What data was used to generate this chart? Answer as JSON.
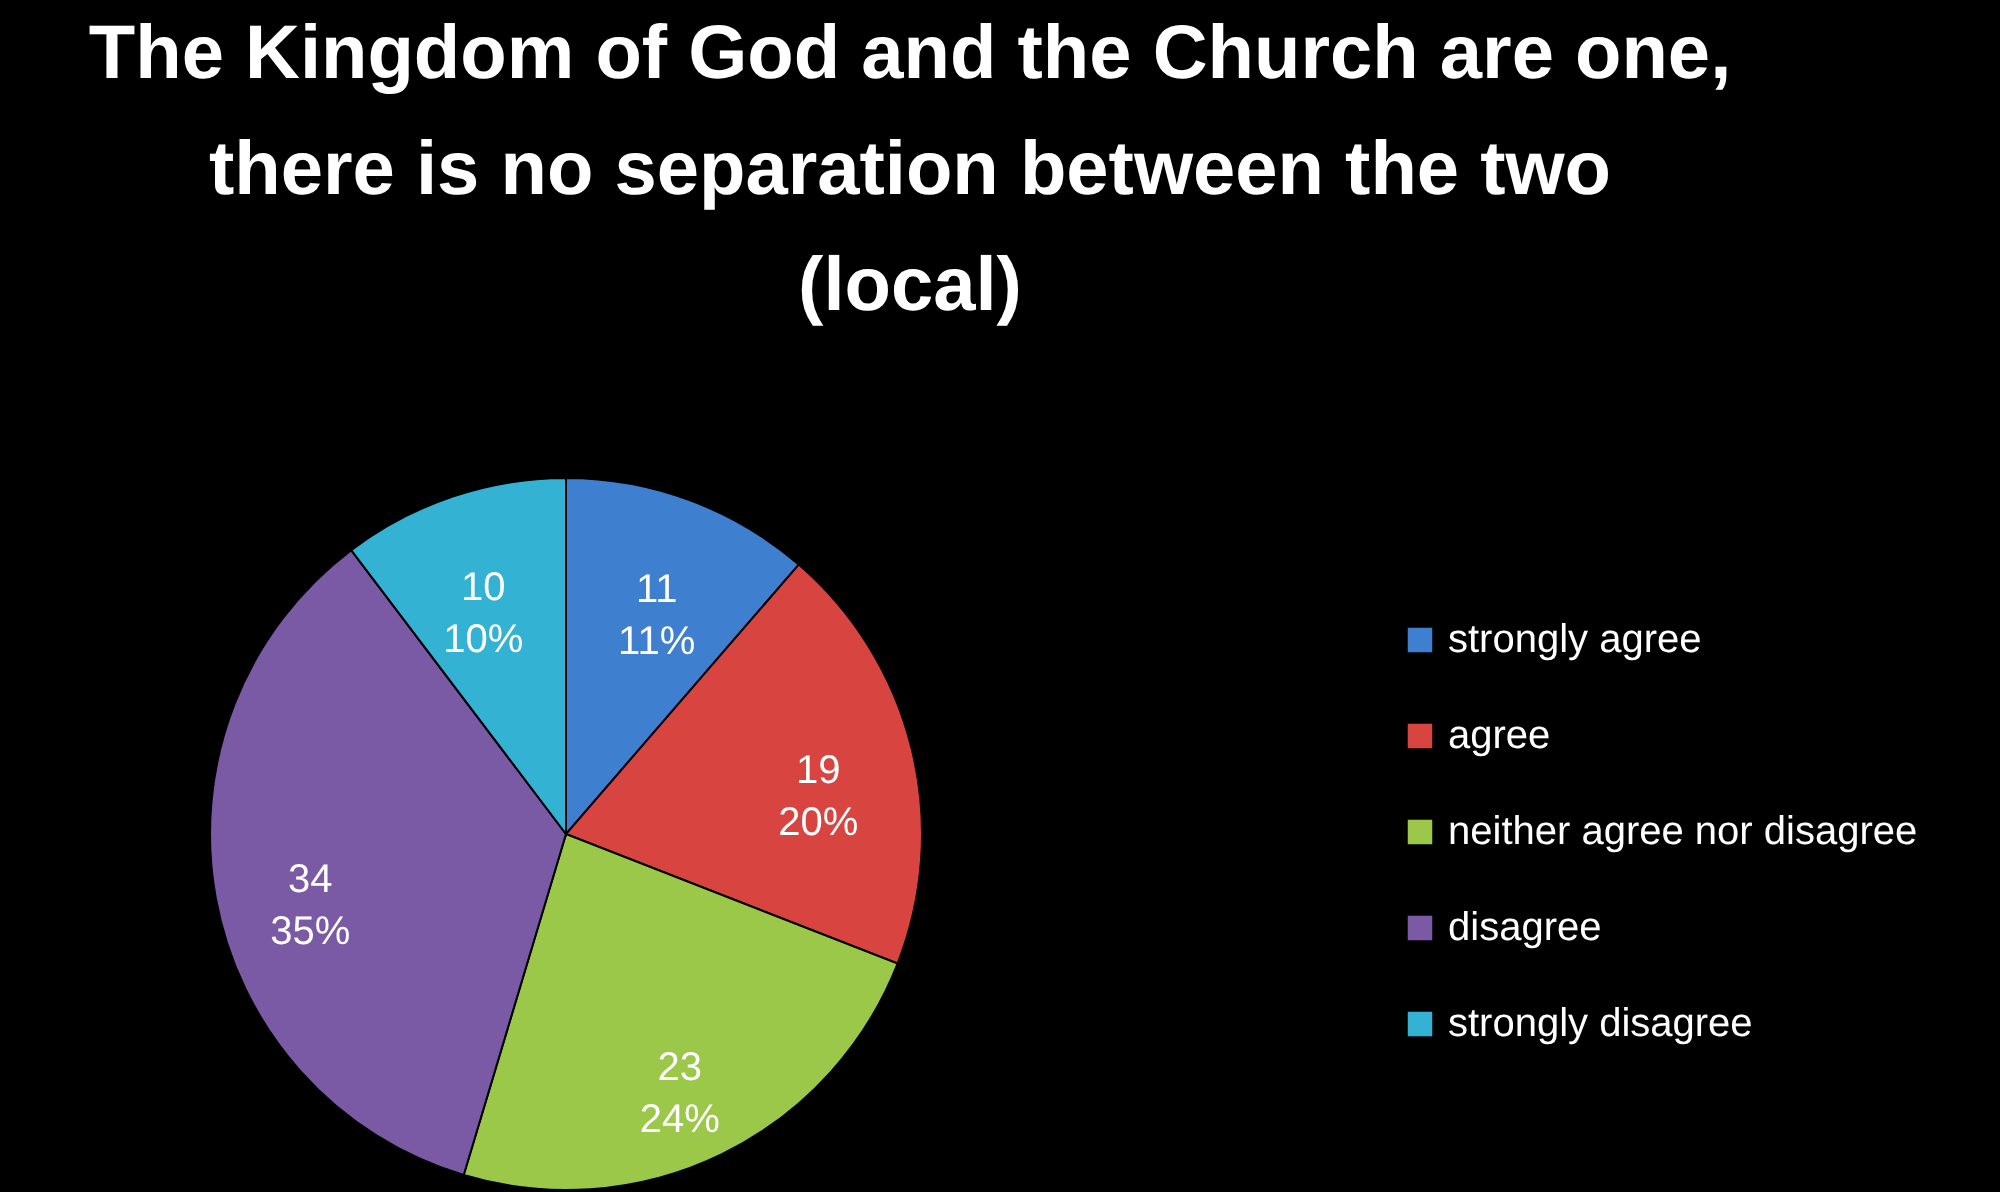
{
  "chart_data": {
    "type": "pie",
    "title": "The Kingdom of God and the Church are one,\nthere is no separation between the two\n(local)",
    "categories": [
      "strongly agree",
      "agree",
      "neither agree nor disagree",
      "disagree",
      "strongly disagree"
    ],
    "values": [
      11,
      19,
      23,
      34,
      10
    ],
    "colors": [
      "#3f7fcf",
      "#d8443f",
      "#9cc84a",
      "#7a59a5",
      "#33b2d3"
    ],
    "value_labels": [
      "11\n11%",
      "19\n20%",
      "23\n24%",
      "34\n35%",
      "10\n10%"
    ],
    "legend": "right"
  }
}
